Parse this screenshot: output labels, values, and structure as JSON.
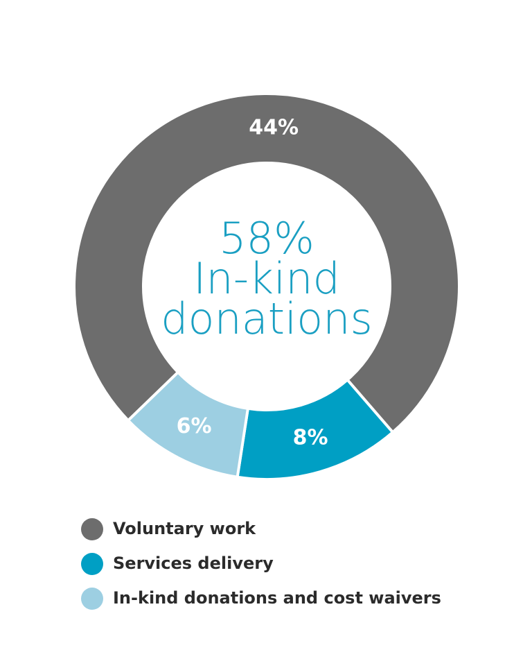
{
  "chart_data": {
    "type": "donut",
    "center_text": [
      "58%",
      "In-kind",
      "donations"
    ],
    "categories": [
      "Voluntary work",
      "Services delivery",
      "In-kind donations and cost waivers"
    ],
    "values": [
      44,
      8,
      6
    ],
    "value_labels": [
      "44%",
      "8%",
      "6%"
    ],
    "colors": [
      "#6d6d6d",
      "#009fc4",
      "#9dcfe2"
    ]
  }
}
